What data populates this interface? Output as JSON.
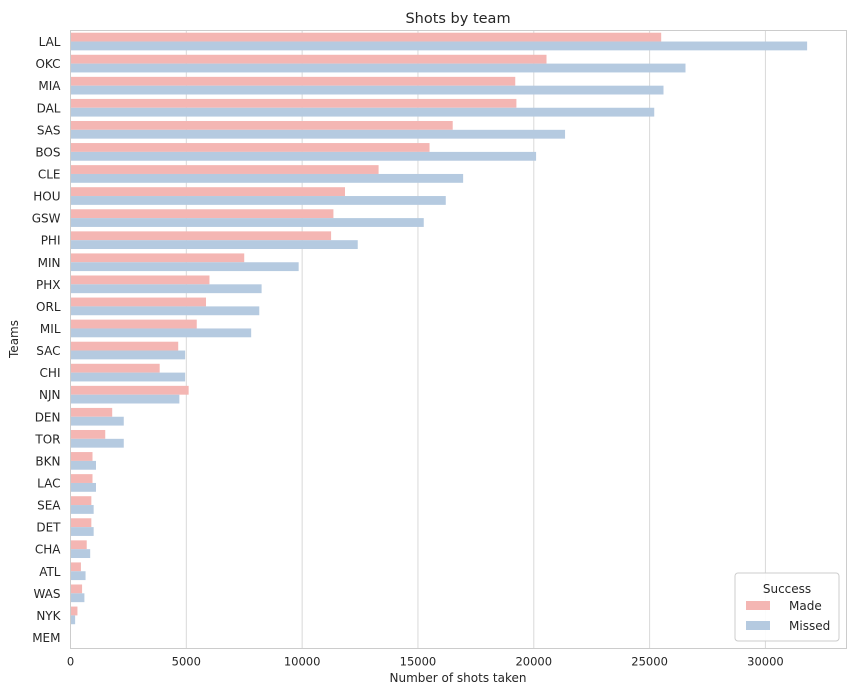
{
  "chart_data": {
    "type": "bar",
    "orientation": "horizontal",
    "title": "Shots by team",
    "xlabel": "Number of shots taken",
    "ylabel": "Teams",
    "xlim": [
      0,
      33500
    ],
    "xticks": [
      0,
      5000,
      10000,
      15000,
      20000,
      25000,
      30000
    ],
    "grid": "vertical",
    "legend_position": "bottom-right",
    "legend_title": "Success",
    "categories": [
      "LAL",
      "OKC",
      "MIA",
      "DAL",
      "SAS",
      "BOS",
      "CLE",
      "HOU",
      "GSW",
      "PHI",
      "MIN",
      "PHX",
      "ORL",
      "MIL",
      "SAC",
      "CHI",
      "NJN",
      "DEN",
      "TOR",
      "BKN",
      "LAC",
      "SEA",
      "DET",
      "CHA",
      "ATL",
      "WAS",
      "NYK",
      "MEM"
    ],
    "series": [
      {
        "name": "Made",
        "color": "#f4b6b3",
        "values": [
          25500,
          20550,
          19200,
          19250,
          16500,
          15500,
          13300,
          11850,
          11350,
          11250,
          7500,
          6000,
          5850,
          5450,
          4650,
          3850,
          5100,
          1800,
          1500,
          950,
          950,
          900,
          900,
          700,
          450,
          500,
          300,
          0
        ]
      },
      {
        "name": "Missed",
        "color": "#b5cae0",
        "values": [
          31800,
          26550,
          25600,
          25200,
          21350,
          20100,
          16950,
          16200,
          15250,
          12400,
          9850,
          8250,
          8150,
          7800,
          4950,
          4950,
          4700,
          2300,
          2300,
          1100,
          1100,
          1000,
          1000,
          850,
          650,
          600,
          200,
          0
        ]
      }
    ]
  }
}
